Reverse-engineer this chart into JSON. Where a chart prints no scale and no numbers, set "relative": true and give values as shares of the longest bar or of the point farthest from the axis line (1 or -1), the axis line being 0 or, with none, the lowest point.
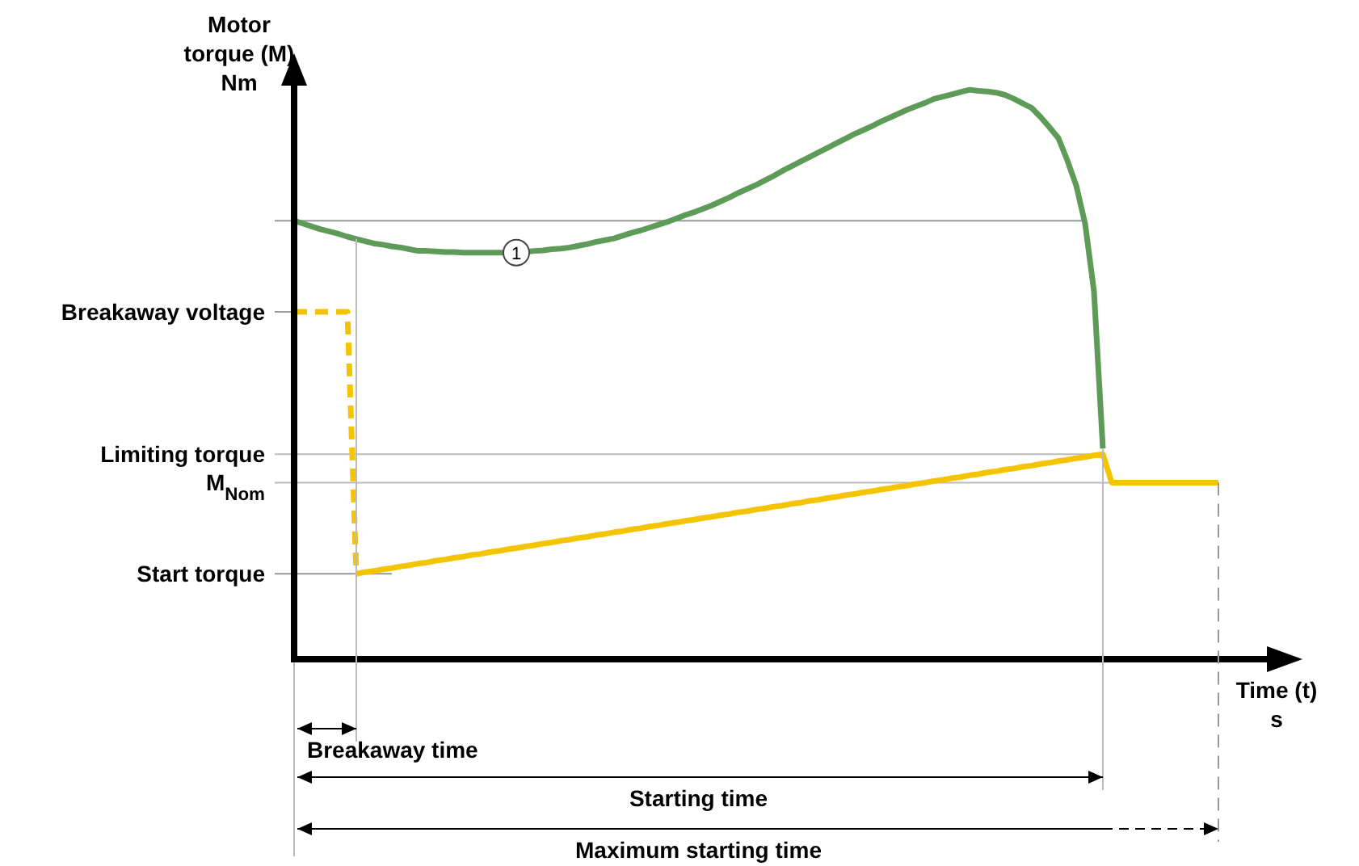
{
  "chart_data": {
    "type": "line",
    "relative": true,
    "xlabel": "Time (t)\ns",
    "ylabel": "Motor\ntorque (M)\nNm",
    "categories": [
      null,
      null,
      null,
      null,
      null,
      null,
      null,
      null,
      null,
      null,
      null,
      null,
      null,
      null,
      null,
      null,
      null,
      null,
      null,
      null,
      null,
      null,
      null,
      null,
      null,
      null,
      null,
      null,
      null,
      null,
      null,
      null,
      null,
      null,
      null,
      null,
      null,
      null,
      null,
      null,
      null,
      null,
      null,
      null,
      null,
      null,
      null,
      null,
      null,
      null,
      null,
      null,
      null,
      null,
      null,
      null,
      null,
      null,
      null,
      null,
      null,
      null,
      null,
      null,
      null,
      null,
      null,
      null,
      null,
      null,
      null,
      null,
      null,
      null,
      null,
      null,
      null,
      null,
      null,
      null,
      null,
      null,
      null,
      null,
      null,
      null,
      null,
      null,
      null,
      null,
      null,
      null,
      null,
      null,
      null,
      null,
      null,
      null,
      null,
      null,
      null,
      null,
      null,
      null,
      null
    ],
    "tick_labels": "y",
    "series": [
      {
        "color": "#5e9a58",
        "values": [
          0.77,
          0.765,
          0.76,
          0.755,
          0.751,
          0.747,
          0.742,
          0.738,
          0.734,
          0.73,
          0.728,
          0.725,
          0.723,
          0.72,
          0.717,
          0.717,
          0.716,
          0.715,
          0.715,
          0.714,
          0.714,
          0.714,
          0.714,
          0.714,
          0.714,
          0.714,
          0.715,
          0.717,
          0.718,
          0.72,
          0.721,
          0.723,
          0.726,
          0.729,
          0.733,
          0.736,
          0.739,
          0.744,
          0.749,
          0.753,
          0.758,
          0.763,
          0.768,
          0.774,
          0.78,
          0.785,
          0.791,
          0.797,
          0.804,
          0.811,
          0.819,
          0.826,
          0.833,
          0.841,
          0.849,
          0.858,
          0.866,
          0.874,
          0.882,
          0.89,
          0.898,
          0.906,
          0.914,
          0.922,
          0.929,
          0.936,
          0.944,
          0.951,
          0.958,
          0.965,
          0.971,
          0.977,
          0.984,
          0.988,
          0.992,
          0.996,
          1,
          0.998,
          0.997,
          0.995,
          0.991,
          0.984,
          0.976,
          0.968,
          0.952,
          0.934,
          0.915,
          0.876,
          0.832,
          0.765,
          0.646,
          0.37,
          null,
          null,
          null,
          null,
          null,
          null,
          null,
          null,
          null,
          null,
          null,
          null,
          null
        ]
      },
      {
        "color": "#f5c400",
        "line_style": "dashed",
        "values": [
          0.61,
          0.61,
          0.61,
          0.61,
          0.61,
          0.61,
          0.61,
          0.15,
          null,
          null,
          null,
          null,
          null,
          null,
          null,
          null,
          null,
          null,
          null,
          null,
          null,
          null,
          null,
          null,
          null,
          null,
          null,
          null,
          null,
          null,
          null,
          null,
          null,
          null,
          null,
          null,
          null,
          null,
          null,
          null,
          null,
          null,
          null,
          null,
          null,
          null,
          null,
          null,
          null,
          null,
          null,
          null,
          null,
          null,
          null,
          null,
          null,
          null,
          null,
          null,
          null,
          null,
          null,
          null,
          null,
          null,
          null,
          null,
          null,
          null,
          null,
          null,
          null,
          null,
          null,
          null,
          null,
          null,
          null,
          null,
          null,
          null,
          null,
          null,
          null,
          null,
          null,
          null,
          null,
          null,
          null,
          null,
          null,
          null,
          null,
          null,
          null,
          null,
          null,
          null,
          null,
          null,
          null,
          null,
          null
        ]
      },
      {
        "color": "#f5c400",
        "line_style": "solid",
        "values": [
          null,
          null,
          null,
          null,
          null,
          null,
          null,
          0.15,
          0.153,
          0.155,
          0.158,
          0.16,
          0.163,
          0.165,
          0.168,
          0.17,
          0.173,
          0.175,
          0.178,
          0.18,
          0.183,
          0.185,
          0.188,
          0.19,
          0.193,
          0.195,
          0.198,
          0.2,
          0.203,
          0.205,
          0.208,
          0.21,
          0.213,
          0.215,
          0.218,
          0.22,
          0.223,
          0.225,
          0.228,
          0.23,
          0.233,
          0.235,
          0.238,
          0.24,
          0.243,
          0.245,
          0.248,
          0.25,
          0.253,
          0.255,
          0.258,
          0.26,
          0.263,
          0.265,
          0.268,
          0.27,
          0.273,
          0.275,
          0.278,
          0.28,
          0.283,
          0.285,
          0.288,
          0.29,
          0.293,
          0.295,
          0.298,
          0.3,
          0.303,
          0.305,
          0.308,
          0.31,
          0.313,
          0.315,
          0.318,
          0.32,
          0.323,
          0.325,
          0.328,
          0.33,
          0.333,
          0.335,
          0.338,
          0.34,
          0.343,
          0.345,
          0.348,
          0.35,
          0.353,
          0.355,
          0.358,
          0.36,
          0.31,
          0.31,
          0.31,
          0.31,
          0.31,
          0.31,
          0.31,
          0.31,
          0.31,
          0.31,
          0.31,
          0.31,
          0.31
        ]
      }
    ],
    "ref_lines": [
      {
        "axis": "y",
        "value": 0.77,
        "label": null,
        "color": "#999999"
      },
      {
        "axis": "y",
        "value": 0.61,
        "label": "Breakaway voltage",
        "color": "#999999"
      },
      {
        "axis": "y",
        "value": 0.36,
        "label": "Limiting torque",
        "color": "#bbbbbb"
      },
      {
        "axis": "y",
        "value": 0.31,
        "label": "M$_{Nom}$",
        "color": "#bbbbbb"
      },
      {
        "axis": "y",
        "value": 0.15,
        "label": "Start torque",
        "color": "#999999"
      }
    ],
    "annotations": [
      {
        "text": "1",
        "y": 0.714
      },
      "Breakaway time",
      "Starting time",
      "Maximum starting time"
    ]
  }
}
